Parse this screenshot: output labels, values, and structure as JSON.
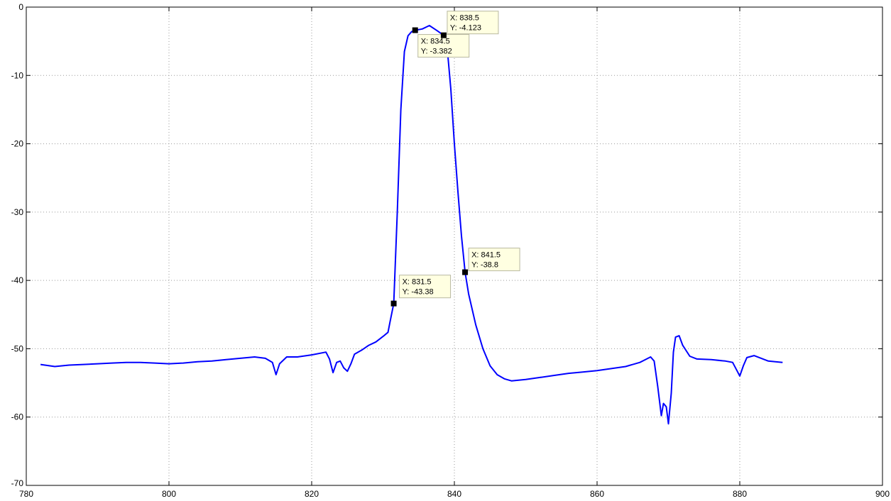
{
  "chart_data": {
    "type": "line",
    "title": "",
    "xlabel": "",
    "ylabel": "",
    "xlim": [
      780,
      900
    ],
    "ylim": [
      -70,
      0
    ],
    "grid": true,
    "xticks": [
      780,
      800,
      820,
      840,
      860,
      880,
      900
    ],
    "yticks": [
      0,
      -10,
      -20,
      -30,
      -40,
      -50,
      -60,
      -70
    ],
    "xtick_labels": [
      "780",
      "800",
      "820",
      "840",
      "860",
      "880",
      "900"
    ],
    "ytick_labels": [
      "0",
      "-10",
      "-20",
      "-30",
      "-40",
      "-50",
      "-60",
      "-70"
    ],
    "series": [
      {
        "color": "#0000ff",
        "points": [
          [
            782,
            -52.3
          ],
          [
            784,
            -52.6
          ],
          [
            786,
            -52.4
          ],
          [
            788,
            -52.3
          ],
          [
            790,
            -52.2
          ],
          [
            792,
            -52.1
          ],
          [
            794,
            -52.0
          ],
          [
            796,
            -52.0
          ],
          [
            798,
            -52.1
          ],
          [
            800,
            -52.2
          ],
          [
            802,
            -52.1
          ],
          [
            804,
            -51.9
          ],
          [
            806,
            -51.8
          ],
          [
            808,
            -51.6
          ],
          [
            810,
            -51.4
          ],
          [
            812,
            -51.2
          ],
          [
            813.5,
            -51.4
          ],
          [
            814.5,
            -52.0
          ],
          [
            815,
            -53.8
          ],
          [
            815.5,
            -52.2
          ],
          [
            816.5,
            -51.2
          ],
          [
            818,
            -51.2
          ],
          [
            820,
            -50.9
          ],
          [
            822,
            -50.5
          ],
          [
            822.5,
            -51.5
          ],
          [
            823,
            -53.5
          ],
          [
            823.5,
            -52.0
          ],
          [
            824,
            -51.8
          ],
          [
            824.5,
            -52.8
          ],
          [
            825,
            -53.3
          ],
          [
            825.5,
            -52.2
          ],
          [
            826,
            -50.8
          ],
          [
            827,
            -50.2
          ],
          [
            828,
            -49.5
          ],
          [
            829,
            -49.0
          ],
          [
            830,
            -48.2
          ],
          [
            830.7,
            -47.6
          ],
          [
            831,
            -46.0
          ],
          [
            831.5,
            -43.38
          ],
          [
            832,
            -30.0
          ],
          [
            832.5,
            -15.0
          ],
          [
            833,
            -6.5
          ],
          [
            833.5,
            -4.2
          ],
          [
            834,
            -3.6
          ],
          [
            834.5,
            -3.382
          ],
          [
            835.5,
            -3.2
          ],
          [
            836.5,
            -2.7
          ],
          [
            837.5,
            -3.4
          ],
          [
            838.5,
            -4.123
          ],
          [
            839,
            -6.0
          ],
          [
            839.5,
            -12.0
          ],
          [
            840,
            -20.0
          ],
          [
            840.5,
            -27.0
          ],
          [
            841,
            -33.5
          ],
          [
            841.5,
            -38.8
          ],
          [
            842,
            -42.0
          ],
          [
            843,
            -46.5
          ],
          [
            844,
            -50.0
          ],
          [
            845,
            -52.5
          ],
          [
            846,
            -53.8
          ],
          [
            847,
            -54.4
          ],
          [
            848,
            -54.7
          ],
          [
            850,
            -54.5
          ],
          [
            852,
            -54.2
          ],
          [
            854,
            -53.9
          ],
          [
            856,
            -53.6
          ],
          [
            858,
            -53.4
          ],
          [
            860,
            -53.2
          ],
          [
            862,
            -52.9
          ],
          [
            864,
            -52.6
          ],
          [
            866,
            -52.0
          ],
          [
            867.5,
            -51.2
          ],
          [
            868,
            -51.8
          ],
          [
            868.5,
            -55.5
          ],
          [
            869,
            -59.8
          ],
          [
            869.3,
            -58.0
          ],
          [
            869.7,
            -58.5
          ],
          [
            870,
            -61.0
          ],
          [
            870.4,
            -56.5
          ],
          [
            870.7,
            -50.5
          ],
          [
            871,
            -48.3
          ],
          [
            871.5,
            -48.1
          ],
          [
            872,
            -49.5
          ],
          [
            873,
            -51.1
          ],
          [
            874,
            -51.5
          ],
          [
            876,
            -51.6
          ],
          [
            878,
            -51.8
          ],
          [
            879,
            -52.0
          ],
          [
            879.6,
            -53.2
          ],
          [
            880,
            -54.0
          ],
          [
            880.5,
            -52.5
          ],
          [
            881,
            -51.3
          ],
          [
            882,
            -51.0
          ],
          [
            884,
            -51.8
          ],
          [
            886,
            -52.0
          ]
        ]
      }
    ],
    "datatips": [
      {
        "x": 831.5,
        "y": -43.38,
        "line1": "X: 831.5",
        "line2": "Y: -43.38",
        "side": "right"
      },
      {
        "x": 834.5,
        "y": -3.382,
        "line1": "X: 834.5",
        "line2": "Y: -3.382",
        "side": "below-right"
      },
      {
        "x": 838.5,
        "y": -4.123,
        "line1": "X: 838.5",
        "line2": "Y: -4.123",
        "side": "above-right"
      },
      {
        "x": 841.5,
        "y": -38.8,
        "line1": "X: 841.5",
        "line2": "Y: -38.8",
        "side": "above-right"
      }
    ]
  }
}
